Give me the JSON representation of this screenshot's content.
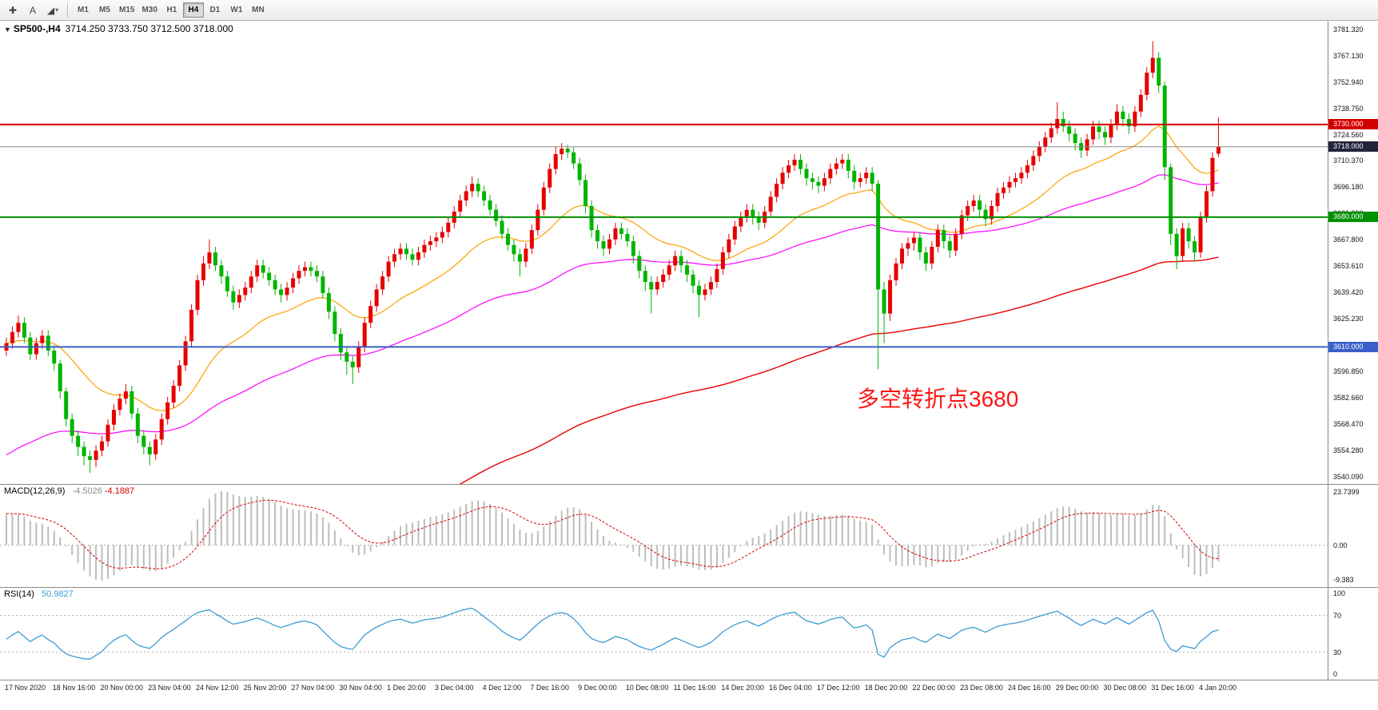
{
  "toolbar": {
    "tools": [
      {
        "name": "crosshair-tool",
        "glyph": "✚"
      },
      {
        "name": "text-tool",
        "glyph": "A"
      },
      {
        "name": "shapes-tool",
        "glyph": "◢",
        "drop_glyph": "▾"
      }
    ],
    "timeframes": [
      {
        "label": "M1"
      },
      {
        "label": "M5"
      },
      {
        "label": "M15"
      },
      {
        "label": "M30"
      },
      {
        "label": "H1"
      },
      {
        "label": "H4",
        "active": true
      },
      {
        "label": "D1"
      },
      {
        "label": "W1"
      },
      {
        "label": "MN"
      }
    ]
  },
  "chart": {
    "dropdown_glyph": "▼",
    "symbol": "SP500-,H4",
    "ohlc": "3714.250 3733.750 3712.500 3718.000"
  },
  "annotation": {
    "text": "多空转折点3680",
    "color": "#ff1414"
  },
  "price_axis": {
    "labels": [
      "3781.320",
      "3767.130",
      "3752.940",
      "3738.750",
      "3724.560",
      "3710.370",
      "3696.180",
      "3681.990",
      "3667.800",
      "3653.610",
      "3639.420",
      "3625.230",
      "3611.040",
      "3596.850",
      "3582.660",
      "3568.470",
      "3554.280",
      "3540.090"
    ],
    "badges": [
      {
        "text": "3730.000",
        "price": 3730,
        "color": "#d40000"
      },
      {
        "text": "3718.000",
        "price": 3718,
        "color": "#22223a"
      },
      {
        "text": "3680.000",
        "price": 3680,
        "color": "#009000"
      },
      {
        "text": "3610.000",
        "price": 3610,
        "color": "#3a5fc8"
      }
    ]
  },
  "hlines": [
    {
      "price": 3730,
      "color": "#d40000",
      "width": 2
    },
    {
      "price": 3718,
      "color": "#8a8a8a",
      "width": 1
    },
    {
      "price": 3680,
      "color": "#009000",
      "width": 2
    },
    {
      "price": 3610,
      "color": "#3a5fc8",
      "width": 2
    }
  ],
  "macd": {
    "label": "MACD(12,26,9)",
    "value_main": "-4.5026",
    "value_signal": "-4.1887",
    "axis_top": "23.7399",
    "axis_zero": "0.00",
    "axis_bottom": "-9.383",
    "colors": {
      "histogram": "#bdbdbd",
      "signal": "#d40000"
    }
  },
  "rsi": {
    "label": "RSI(14)",
    "value": "50.9827",
    "axis": [
      "100",
      "70",
      "30",
      "0"
    ],
    "levels": [
      70,
      30
    ],
    "color": "#3d9bd5"
  },
  "time_axis": {
    "labels": [
      "17 Nov 2020",
      "18 Nov 16:00",
      "20 Nov 00:00",
      "23 Nov 04:00",
      "24 Nov 12:00",
      "25 Nov 20:00",
      "27 Nov 04:00",
      "30 Nov 04:00",
      "1 Dec 20:00",
      "3 Dec 04:00",
      "4 Dec 12:00",
      "7 Dec 16:00",
      "9 Dec 00:00",
      "10 Dec 08:00",
      "11 Dec 16:00",
      "14 Dec 20:00",
      "16 Dec 04:00",
      "17 Dec 12:00",
      "18 Dec 20:00",
      "22 Dec 00:00",
      "23 Dec 08:00",
      "24 Dec 16:00",
      "29 Dec 00:00",
      "30 Dec 08:00",
      "31 Dec 16:00",
      "4 Jan 20:00"
    ]
  },
  "chart_data": {
    "type": "candlestick",
    "symbol": "SP500-",
    "timeframe": "H4",
    "title": "SP500-,H4 3714.250 3733.750 3712.500 3718.000",
    "ylim": [
      3536,
      3786
    ],
    "colors": {
      "up": "#e60000",
      "down": "#00b400",
      "ma_fast": "#ffa000",
      "ma_mid": "#ff00ff",
      "ma_slow": "#e80000"
    },
    "levels": {
      "resistance": 3730,
      "pivot": 3680,
      "support": 3610,
      "bid": 3718
    },
    "candles": [
      [
        3608,
        3615,
        3605,
        3612
      ],
      [
        3612,
        3621,
        3609,
        3618
      ],
      [
        3618,
        3627,
        3615,
        3623
      ],
      [
        3623,
        3626,
        3612,
        3615
      ],
      [
        3615,
        3618,
        3603,
        3606
      ],
      [
        3606,
        3615,
        3603,
        3612
      ],
      [
        3612,
        3619,
        3609,
        3616
      ],
      [
        3616,
        3619,
        3605,
        3608
      ],
      [
        3608,
        3611,
        3597,
        3601
      ],
      [
        3601,
        3603,
        3582,
        3586
      ],
      [
        3586,
        3588,
        3567,
        3571
      ],
      [
        3571,
        3574,
        3558,
        3562
      ],
      [
        3562,
        3565,
        3551,
        3556
      ],
      [
        3556,
        3559,
        3546,
        3551
      ],
      [
        3551,
        3554,
        3542,
        3549
      ],
      [
        3549,
        3557,
        3545,
        3554
      ],
      [
        3554,
        3562,
        3551,
        3559
      ],
      [
        3559,
        3571,
        3556,
        3568
      ],
      [
        3568,
        3579,
        3565,
        3576
      ],
      [
        3576,
        3585,
        3573,
        3582
      ],
      [
        3582,
        3590,
        3579,
        3586
      ],
      [
        3586,
        3589,
        3571,
        3574
      ],
      [
        3574,
        3577,
        3558,
        3562
      ],
      [
        3562,
        3565,
        3552,
        3556
      ],
      [
        3556,
        3559,
        3546,
        3552
      ],
      [
        3552,
        3563,
        3549,
        3560
      ],
      [
        3560,
        3574,
        3557,
        3571
      ],
      [
        3571,
        3583,
        3568,
        3580
      ],
      [
        3580,
        3592,
        3577,
        3589
      ],
      [
        3589,
        3603,
        3586,
        3600
      ],
      [
        3600,
        3616,
        3597,
        3613
      ],
      [
        3613,
        3633,
        3610,
        3630
      ],
      [
        3630,
        3649,
        3627,
        3646
      ],
      [
        3646,
        3659,
        3643,
        3655
      ],
      [
        3655,
        3668,
        3652,
        3661
      ],
      [
        3661,
        3664,
        3651,
        3654
      ],
      [
        3654,
        3657,
        3644,
        3648
      ],
      [
        3648,
        3651,
        3637,
        3640
      ],
      [
        3640,
        3643,
        3630,
        3634
      ],
      [
        3634,
        3641,
        3631,
        3638
      ],
      [
        3638,
        3645,
        3635,
        3642
      ],
      [
        3642,
        3651,
        3639,
        3648
      ],
      [
        3648,
        3657,
        3645,
        3654
      ],
      [
        3654,
        3657,
        3647,
        3650
      ],
      [
        3650,
        3653,
        3643,
        3646
      ],
      [
        3646,
        3649,
        3638,
        3641
      ],
      [
        3641,
        3644,
        3634,
        3638
      ],
      [
        3638,
        3645,
        3635,
        3642
      ],
      [
        3642,
        3650,
        3639,
        3647
      ],
      [
        3647,
        3654,
        3644,
        3651
      ],
      [
        3651,
        3656,
        3648,
        3653
      ],
      [
        3653,
        3656,
        3648,
        3651
      ],
      [
        3651,
        3654,
        3645,
        3648
      ],
      [
        3648,
        3651,
        3636,
        3639
      ],
      [
        3639,
        3642,
        3625,
        3629
      ],
      [
        3629,
        3632,
        3613,
        3617
      ],
      [
        3617,
        3620,
        3603,
        3607
      ],
      [
        3607,
        3610,
        3595,
        3602
      ],
      [
        3602,
        3605,
        3590,
        3599
      ],
      [
        3599,
        3613,
        3596,
        3610
      ],
      [
        3610,
        3626,
        3607,
        3623
      ],
      [
        3623,
        3635,
        3620,
        3632
      ],
      [
        3632,
        3644,
        3629,
        3641
      ],
      [
        3641,
        3651,
        3638,
        3648
      ],
      [
        3648,
        3659,
        3645,
        3656
      ],
      [
        3656,
        3663,
        3653,
        3660
      ],
      [
        3660,
        3666,
        3657,
        3663
      ],
      [
        3663,
        3666,
        3657,
        3660
      ],
      [
        3660,
        3663,
        3654,
        3657
      ],
      [
        3657,
        3664,
        3654,
        3661
      ],
      [
        3661,
        3668,
        3658,
        3665
      ],
      [
        3665,
        3670,
        3662,
        3667
      ],
      [
        3667,
        3672,
        3664,
        3669
      ],
      [
        3669,
        3675,
        3666,
        3672
      ],
      [
        3672,
        3680,
        3669,
        3677
      ],
      [
        3677,
        3686,
        3674,
        3683
      ],
      [
        3683,
        3692,
        3680,
        3689
      ],
      [
        3689,
        3697,
        3686,
        3694
      ],
      [
        3694,
        3702,
        3691,
        3698
      ],
      [
        3698,
        3701,
        3691,
        3694
      ],
      [
        3694,
        3697,
        3686,
        3689
      ],
      [
        3689,
        3692,
        3681,
        3684
      ],
      [
        3684,
        3687,
        3675,
        3678
      ],
      [
        3678,
        3681,
        3668,
        3671
      ],
      [
        3671,
        3674,
        3662,
        3665
      ],
      [
        3665,
        3668,
        3656,
        3660
      ],
      [
        3660,
        3663,
        3648,
        3656
      ],
      [
        3656,
        3666,
        3653,
        3663
      ],
      [
        3663,
        3676,
        3660,
        3673
      ],
      [
        3673,
        3687,
        3670,
        3684
      ],
      [
        3684,
        3699,
        3681,
        3696
      ],
      [
        3696,
        3709,
        3693,
        3706
      ],
      [
        3706,
        3718,
        3703,
        3714
      ],
      [
        3714,
        3720,
        3711,
        3717
      ],
      [
        3717,
        3719,
        3712,
        3715
      ],
      [
        3715,
        3718,
        3706,
        3709
      ],
      [
        3709,
        3712,
        3697,
        3700
      ],
      [
        3700,
        3703,
        3682,
        3686
      ],
      [
        3686,
        3689,
        3669,
        3673
      ],
      [
        3673,
        3676,
        3663,
        3667
      ],
      [
        3667,
        3670,
        3659,
        3663
      ],
      [
        3663,
        3671,
        3660,
        3668
      ],
      [
        3668,
        3677,
        3665,
        3674
      ],
      [
        3674,
        3677,
        3668,
        3671
      ],
      [
        3671,
        3674,
        3664,
        3667
      ],
      [
        3667,
        3670,
        3655,
        3659
      ],
      [
        3659,
        3662,
        3647,
        3651
      ],
      [
        3651,
        3654,
        3640,
        3645
      ],
      [
        3645,
        3648,
        3628,
        3641
      ],
      [
        3641,
        3648,
        3638,
        3645
      ],
      [
        3645,
        3652,
        3642,
        3649
      ],
      [
        3649,
        3657,
        3646,
        3654
      ],
      [
        3654,
        3662,
        3651,
        3659
      ],
      [
        3659,
        3662,
        3650,
        3654
      ],
      [
        3654,
        3657,
        3645,
        3649
      ],
      [
        3649,
        3652,
        3639,
        3643
      ],
      [
        3643,
        3646,
        3626,
        3638
      ],
      [
        3638,
        3644,
        3635,
        3641
      ],
      [
        3641,
        3648,
        3638,
        3645
      ],
      [
        3645,
        3655,
        3642,
        3652
      ],
      [
        3652,
        3664,
        3649,
        3661
      ],
      [
        3661,
        3671,
        3658,
        3668
      ],
      [
        3668,
        3678,
        3665,
        3675
      ],
      [
        3675,
        3683,
        3672,
        3680
      ],
      [
        3680,
        3687,
        3677,
        3684
      ],
      [
        3684,
        3687,
        3676,
        3680
      ],
      [
        3680,
        3683,
        3673,
        3677
      ],
      [
        3677,
        3686,
        3674,
        3683
      ],
      [
        3683,
        3694,
        3680,
        3691
      ],
      [
        3691,
        3701,
        3688,
        3698
      ],
      [
        3698,
        3707,
        3695,
        3704
      ],
      [
        3704,
        3711,
        3701,
        3708
      ],
      [
        3708,
        3714,
        3705,
        3711
      ],
      [
        3711,
        3714,
        3703,
        3706
      ],
      [
        3706,
        3709,
        3697,
        3701
      ],
      [
        3701,
        3704,
        3695,
        3699
      ],
      [
        3699,
        3702,
        3693,
        3697
      ],
      [
        3697,
        3704,
        3694,
        3701
      ],
      [
        3701,
        3709,
        3698,
        3706
      ],
      [
        3706,
        3712,
        3703,
        3709
      ],
      [
        3709,
        3714,
        3706,
        3711
      ],
      [
        3711,
        3714,
        3701,
        3705
      ],
      [
        3705,
        3708,
        3695,
        3699
      ],
      [
        3699,
        3704,
        3696,
        3701
      ],
      [
        3701,
        3707,
        3698,
        3704
      ],
      [
        3704,
        3707,
        3694,
        3698
      ],
      [
        3698,
        3700,
        3598,
        3641
      ],
      [
        3641,
        3645,
        3612,
        3628
      ],
      [
        3628,
        3649,
        3624,
        3646
      ],
      [
        3646,
        3658,
        3643,
        3655
      ],
      [
        3655,
        3666,
        3652,
        3663
      ],
      [
        3663,
        3669,
        3659,
        3666
      ],
      [
        3666,
        3672,
        3662,
        3669
      ],
      [
        3669,
        3672,
        3657,
        3661
      ],
      [
        3661,
        3664,
        3651,
        3655
      ],
      [
        3655,
        3667,
        3652,
        3664
      ],
      [
        3664,
        3676,
        3661,
        3673
      ],
      [
        3673,
        3676,
        3663,
        3667
      ],
      [
        3667,
        3670,
        3658,
        3662
      ],
      [
        3662,
        3674,
        3659,
        3671
      ],
      [
        3671,
        3684,
        3668,
        3681
      ],
      [
        3681,
        3689,
        3678,
        3686
      ],
      [
        3686,
        3692,
        3683,
        3689
      ],
      [
        3689,
        3692,
        3680,
        3684
      ],
      [
        3684,
        3687,
        3675,
        3679
      ],
      [
        3679,
        3689,
        3676,
        3686
      ],
      [
        3686,
        3696,
        3683,
        3693
      ],
      [
        3693,
        3699,
        3690,
        3696
      ],
      [
        3696,
        3702,
        3693,
        3699
      ],
      [
        3699,
        3704,
        3696,
        3701
      ],
      [
        3701,
        3707,
        3698,
        3704
      ],
      [
        3704,
        3711,
        3701,
        3708
      ],
      [
        3708,
        3716,
        3705,
        3713
      ],
      [
        3713,
        3721,
        3710,
        3718
      ],
      [
        3718,
        3726,
        3715,
        3723
      ],
      [
        3723,
        3731,
        3720,
        3728
      ],
      [
        3728,
        3742,
        3725,
        3733
      ],
      [
        3733,
        3737,
        3726,
        3729
      ],
      [
        3729,
        3732,
        3721,
        3725
      ],
      [
        3725,
        3728,
        3716,
        3720
      ],
      [
        3720,
        3723,
        3712,
        3716
      ],
      [
        3716,
        3725,
        3713,
        3722
      ],
      [
        3722,
        3732,
        3719,
        3729
      ],
      [
        3729,
        3732,
        3722,
        3726
      ],
      [
        3726,
        3729,
        3719,
        3723
      ],
      [
        3723,
        3733,
        3720,
        3730
      ],
      [
        3730,
        3741,
        3727,
        3737
      ],
      [
        3737,
        3740,
        3729,
        3733
      ],
      [
        3733,
        3736,
        3725,
        3729
      ],
      [
        3729,
        3740,
        3726,
        3737
      ],
      [
        3737,
        3749,
        3734,
        3746
      ],
      [
        3746,
        3761,
        3743,
        3758
      ],
      [
        3758,
        3775,
        3755,
        3766
      ],
      [
        3766,
        3769,
        3747,
        3751
      ],
      [
        3751,
        3753,
        3700,
        3707
      ],
      [
        3707,
        3709,
        3665,
        3671
      ],
      [
        3671,
        3674,
        3652,
        3659
      ],
      [
        3659,
        3677,
        3656,
        3674
      ],
      [
        3674,
        3677,
        3663,
        3667
      ],
      [
        3667,
        3670,
        3656,
        3661
      ],
      [
        3661,
        3683,
        3658,
        3680
      ],
      [
        3680,
        3697,
        3677,
        3694
      ],
      [
        3694,
        3715,
        3691,
        3712
      ],
      [
        3714.25,
        3733.75,
        3712.5,
        3718
      ]
    ]
  }
}
